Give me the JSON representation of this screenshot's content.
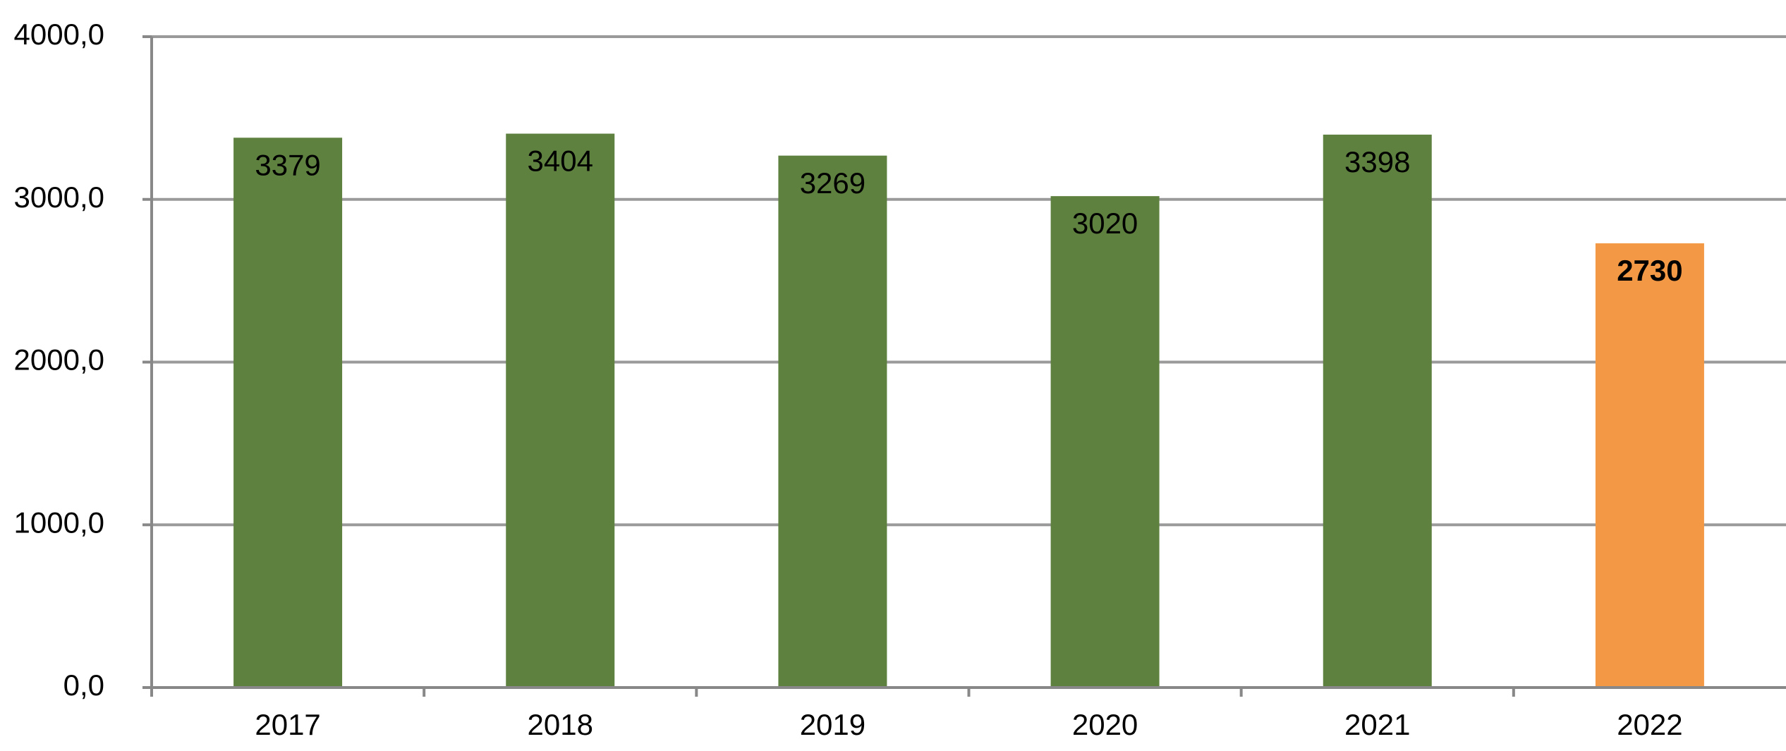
{
  "chart_data": {
    "type": "bar",
    "categories": [
      "2017",
      "2018",
      "2019",
      "2020",
      "2021",
      "2022"
    ],
    "values": [
      3379,
      3404,
      3269,
      3020,
      3398,
      2730
    ],
    "colors": [
      "#5f8140",
      "#5f8140",
      "#5f8140",
      "#5f8140",
      "#5f8140",
      "#f39945"
    ],
    "label_bold": [
      false,
      false,
      false,
      false,
      false,
      true
    ],
    "ylim": [
      0,
      4000
    ],
    "yticks": [
      {
        "value": 0,
        "label": "0,0"
      },
      {
        "value": 1000,
        "label": "1000,0"
      },
      {
        "value": 2000,
        "label": "2000,0"
      },
      {
        "value": 3000,
        "label": "3000,0"
      },
      {
        "value": 4000,
        "label": "4000,0"
      }
    ],
    "grid": true
  }
}
